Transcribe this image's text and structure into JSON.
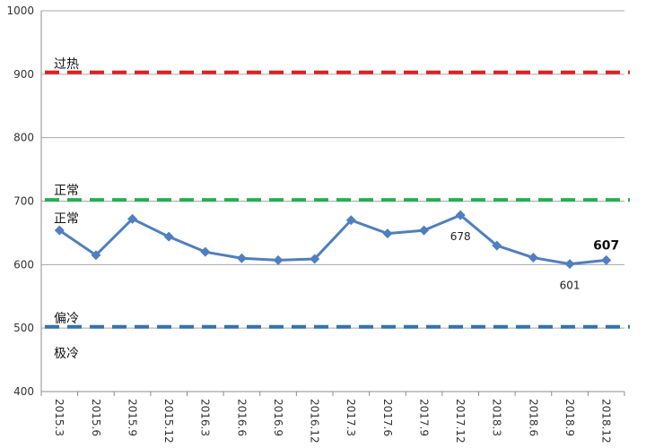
{
  "chart_data": {
    "type": "line",
    "title": "",
    "xlabel": "",
    "ylabel": "",
    "ylim": [
      400,
      1000
    ],
    "yticks": [
      400,
      500,
      600,
      700,
      800,
      900,
      1000
    ],
    "grid": "horizontal",
    "categories": [
      "2015.3",
      "2015.6",
      "2015.9",
      "2015.12",
      "2016.3",
      "2016.6",
      "2016.9",
      "2016.12",
      "2017.3",
      "2017.6",
      "2017.9",
      "2017.12",
      "2018.3",
      "2018.6",
      "2018.9",
      "2018.12"
    ],
    "series": [
      {
        "values": [
          654,
          615,
          672,
          644,
          620,
          610,
          607,
          609,
          670,
          649,
          654,
          678,
          630,
          611,
          601,
          607
        ],
        "color": "#4F7FC0",
        "marker": "diamond"
      }
    ],
    "data_labels": [
      {
        "index": 11,
        "text": "678",
        "bold": false,
        "position": "below"
      },
      {
        "index": 14,
        "text": "601",
        "bold": false,
        "position": "below"
      },
      {
        "index": 15,
        "text": "607",
        "bold": true,
        "position": "above"
      }
    ],
    "reference_lines": [
      {
        "value": 903,
        "color": "#E02020"
      },
      {
        "value": 702,
        "color": "#22B050"
      },
      {
        "value": 502,
        "color": "#2F73B5"
      }
    ],
    "zone_labels": [
      {
        "text": "过热",
        "value": 917
      },
      {
        "text": "正常",
        "value": 718
      },
      {
        "text": "正常",
        "value": 673
      },
      {
        "text": "偏冷",
        "value": 516
      },
      {
        "text": "极冷",
        "value": 461
      }
    ]
  }
}
